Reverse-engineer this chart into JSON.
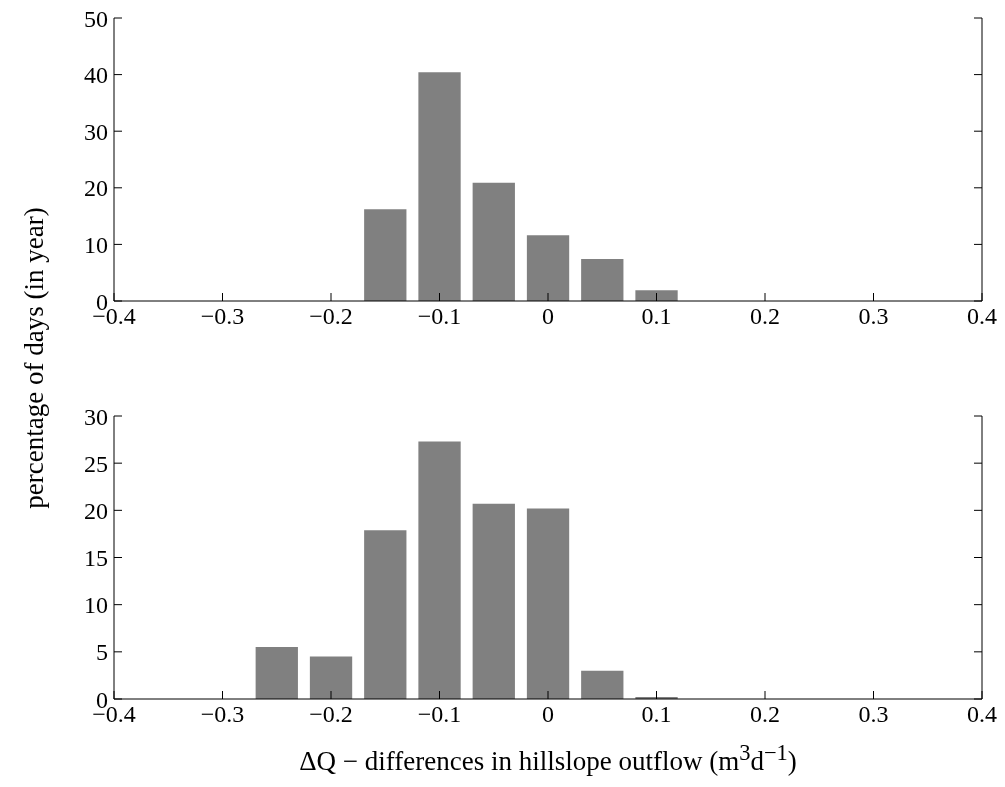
{
  "chart_data": [
    {
      "type": "bar",
      "ylabel": "percentage of days (in year)",
      "x": [
        -0.35,
        -0.3,
        -0.25,
        -0.2,
        -0.15,
        -0.1,
        -0.05,
        0,
        0.05,
        0.1,
        0.15,
        0.2,
        0.25,
        0.3,
        0.35
      ],
      "values": [
        0,
        0,
        0,
        0,
        16.2,
        40.4,
        20.9,
        11.6,
        7.4,
        1.9,
        0,
        0,
        0,
        0,
        0
      ],
      "color": "#808080",
      "xlim": [
        -0.4,
        0.4
      ],
      "xticks": [
        {
          "value": -0.4,
          "label": "−0.4"
        },
        {
          "value": -0.3,
          "label": "−0.3"
        },
        {
          "value": -0.2,
          "label": "−0.2"
        },
        {
          "value": -0.1,
          "label": "−0.1"
        },
        0,
        0.1,
        0.2,
        0.3,
        0.4
      ],
      "ylim": [
        0,
        50
      ],
      "yticks": [
        0,
        10,
        20,
        30,
        40,
        50
      ],
      "grid": false
    },
    {
      "type": "bar",
      "xlabel": "ΔQ − differences in hillslope outflow (m$^{3}$d$^{−1}$)",
      "x": [
        -0.35,
        -0.3,
        -0.25,
        -0.2,
        -0.15,
        -0.1,
        -0.05,
        0,
        0.05,
        0.1,
        0.15,
        0.2,
        0.25,
        0.3,
        0.35
      ],
      "values": [
        0,
        0,
        5.5,
        4.5,
        17.9,
        27.3,
        20.7,
        20.2,
        3.0,
        0.2,
        0,
        0,
        0,
        0,
        0
      ],
      "color": "#808080",
      "xlim": [
        -0.4,
        0.4
      ],
      "xticks": [
        {
          "value": -0.4,
          "label": "−0.4"
        },
        {
          "value": -0.3,
          "label": "−0.3"
        },
        {
          "value": -0.2,
          "label": "−0.2"
        },
        {
          "value": -0.1,
          "label": "−0.1"
        },
        0,
        0.1,
        0.2,
        0.3,
        0.4
      ],
      "ylim": [
        0,
        30
      ],
      "yticks": [
        0,
        5,
        10,
        15,
        20,
        25,
        30
      ],
      "grid": false
    }
  ]
}
